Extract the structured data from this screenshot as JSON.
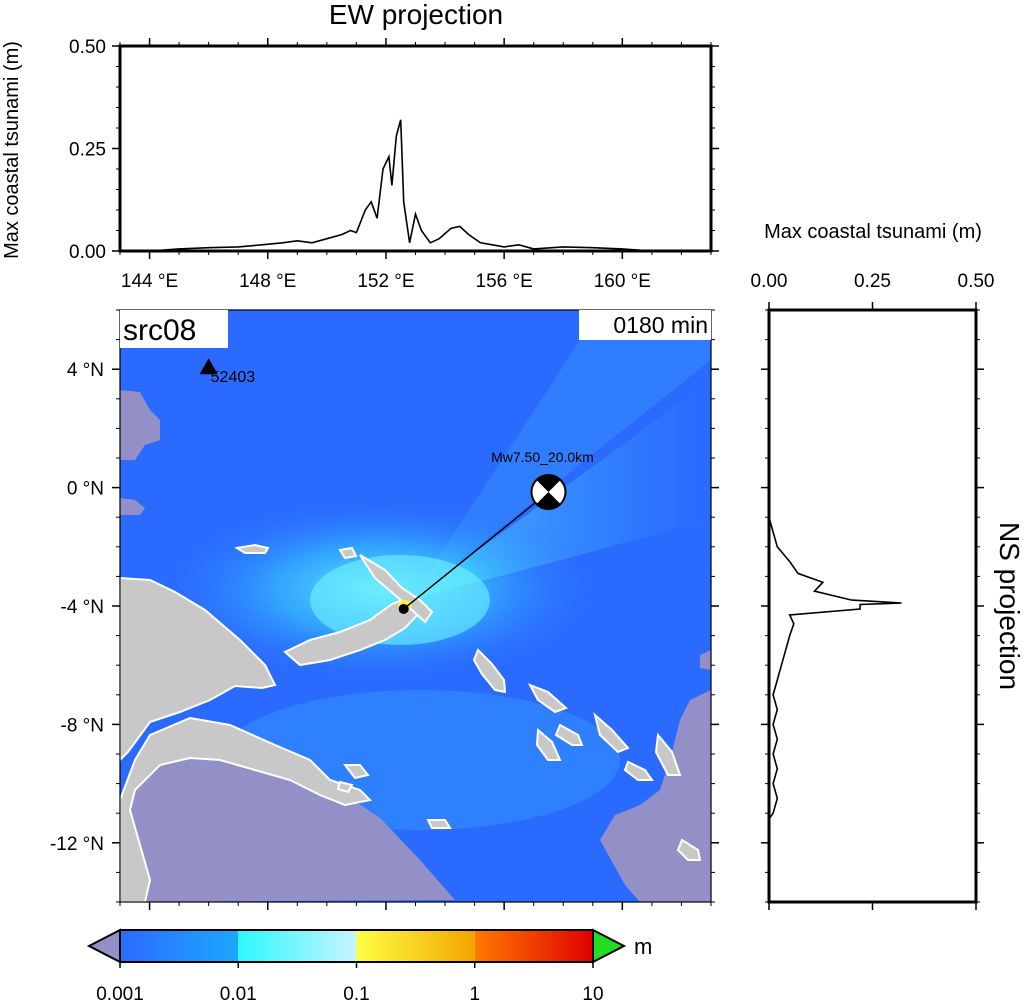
{
  "colors": {
    "ocean_low": "#2a6aff",
    "ocean_mid": "#3aa8ff",
    "ocean_high": "#6ef4ff",
    "land_inundated": "#9390c8",
    "land": "#c8c8c8",
    "coast": "#ffffff",
    "source_patch": "#ffee44"
  },
  "chart_data": [
    {
      "type": "line",
      "title": "EW projection",
      "xlabel": "",
      "ylabel": "Max coastal tsunami (m)",
      "xlim": [
        143,
        163
      ],
      "ylim": [
        0,
        0.5
      ],
      "xticks": [
        144,
        148,
        152,
        156,
        160
      ],
      "xtick_labels": [
        "144 °E",
        "148 °E",
        "152 °E",
        "156 °E",
        "160 °E"
      ],
      "yticks": [
        0,
        0.25,
        0.5
      ],
      "ytick_labels": [
        "0.00",
        "0.25",
        "0.50"
      ],
      "x": [
        144.0,
        145.0,
        146.0,
        147.0,
        147.8,
        148.5,
        149.0,
        149.5,
        150.0,
        150.5,
        150.8,
        151.0,
        151.3,
        151.5,
        151.7,
        151.9,
        152.1,
        152.2,
        152.35,
        152.5,
        152.6,
        152.8,
        153.0,
        153.2,
        153.5,
        153.8,
        154.2,
        154.5,
        154.8,
        155.2,
        155.6,
        156.0,
        156.5,
        157.0,
        158.0,
        159.0,
        160.0,
        161.0
      ],
      "y": [
        0.0,
        0.005,
        0.008,
        0.01,
        0.015,
        0.02,
        0.025,
        0.02,
        0.03,
        0.04,
        0.05,
        0.045,
        0.1,
        0.12,
        0.08,
        0.2,
        0.23,
        0.16,
        0.28,
        0.32,
        0.12,
        0.02,
        0.09,
        0.05,
        0.02,
        0.03,
        0.055,
        0.06,
        0.04,
        0.02,
        0.015,
        0.01,
        0.015,
        0.005,
        0.01,
        0.008,
        0.005,
        0.0
      ]
    },
    {
      "type": "line",
      "title": "NS projection",
      "xlabel": "Max coastal tsunami (m)",
      "ylabel": "",
      "xlim": [
        0,
        0.5
      ],
      "ylim": [
        -14,
        6
      ],
      "xticks": [
        0,
        0.25,
        0.5
      ],
      "xtick_labels": [
        "0.00",
        "0.25",
        "0.50"
      ],
      "y": [
        -1.0,
        -1.5,
        -2.0,
        -2.5,
        -2.9,
        -3.2,
        -3.5,
        -3.8,
        -3.9,
        -3.95,
        -4.1,
        -4.3,
        -4.6,
        -5.0,
        -5.5,
        -6.0,
        -6.5,
        -7.0,
        -7.5,
        -8.0,
        -8.5,
        -9.0,
        -9.5,
        -10.0,
        -10.5,
        -11.0,
        -11.2
      ],
      "x": [
        0.0,
        0.01,
        0.02,
        0.05,
        0.07,
        0.13,
        0.11,
        0.2,
        0.32,
        0.22,
        0.22,
        0.05,
        0.06,
        0.05,
        0.04,
        0.03,
        0.02,
        0.01,
        0.02,
        0.01,
        0.02,
        0.01,
        0.02,
        0.01,
        0.02,
        0.01,
        0.0
      ]
    },
    {
      "type": "heatmap",
      "panel_label": "src08",
      "time_label": "0180 min",
      "yticks": [
        4,
        0,
        -4,
        -8,
        -12
      ],
      "ytick_labels": [
        "4 °N",
        "0 °N",
        "-4 °N",
        "-8 °N",
        "-12 °N"
      ],
      "xlim": [
        143,
        163
      ],
      "ylim": [
        -14,
        6
      ],
      "station": {
        "name": "52403",
        "lon": 146.0,
        "lat": 4.0
      },
      "epicenter": {
        "lon": 152.6,
        "lat": -4.1
      },
      "mechanism_label": "Mw7.50_20.0km",
      "mechanism_position": {
        "lon": 157.5,
        "lat": -0.15
      }
    }
  ],
  "colorbar": {
    "unit": "m",
    "labels": [
      "0.001",
      "0.01",
      "0.1",
      "1",
      "10"
    ],
    "segment_colors": [
      [
        "#2d6bff",
        "#1aa8ff"
      ],
      [
        "#2cf8ff",
        "#c8f4ff"
      ],
      [
        "#ffff44",
        "#f2a400"
      ],
      [
        "#ff7a00",
        "#e00000"
      ]
    ],
    "under_color": "#9390c8",
    "over_color": "#22dd22"
  }
}
